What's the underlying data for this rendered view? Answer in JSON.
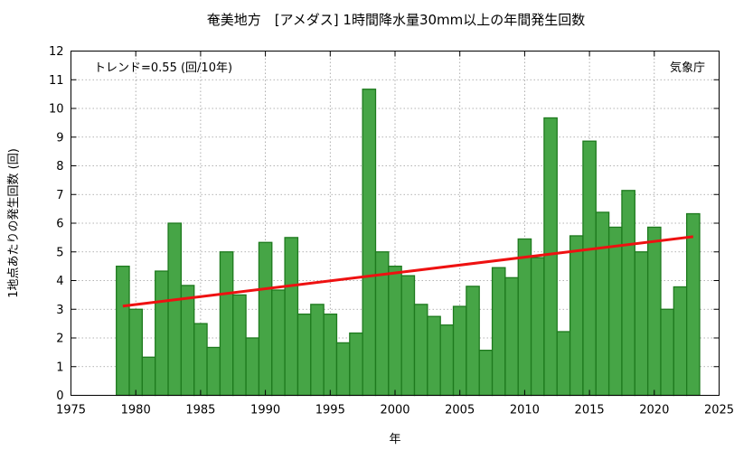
{
  "chart_data": {
    "type": "bar",
    "title": "奄美地方　[アメダス] 1時間降水量30mm以上の年間発生回数",
    "xlabel": "年",
    "ylabel": "1地点あたりの発生回数 (回)",
    "trend_label": "トレンド=0.55 (回/10年)",
    "source": "気象庁",
    "xlim": [
      1975,
      2025
    ],
    "ylim": [
      0,
      12
    ],
    "x_ticks": [
      1975,
      1980,
      1985,
      1990,
      1995,
      2000,
      2005,
      2010,
      2015,
      2020,
      2025
    ],
    "y_ticks": [
      0,
      1,
      2,
      3,
      4,
      5,
      6,
      7,
      8,
      9,
      10,
      11,
      12
    ],
    "grid": true,
    "years": [
      1979,
      1980,
      1981,
      1982,
      1983,
      1984,
      1985,
      1986,
      1987,
      1988,
      1989,
      1990,
      1991,
      1992,
      1993,
      1994,
      1995,
      1996,
      1997,
      1998,
      1999,
      2000,
      2001,
      2002,
      2003,
      2004,
      2005,
      2006,
      2007,
      2008,
      2009,
      2010,
      2011,
      2012,
      2013,
      2014,
      2015,
      2016,
      2017,
      2018,
      2019,
      2020,
      2021,
      2022,
      2023
    ],
    "values": [
      4.5,
      3.0,
      1.33,
      4.33,
      6.0,
      3.83,
      2.5,
      1.67,
      5.0,
      3.5,
      2.0,
      5.33,
      3.67,
      5.5,
      2.83,
      3.17,
      2.83,
      1.83,
      2.17,
      10.67,
      5.0,
      4.5,
      4.17,
      3.17,
      2.75,
      2.45,
      3.1,
      3.8,
      1.57,
      4.45,
      4.1,
      5.45,
      4.8,
      9.67,
      2.22,
      5.56,
      8.86,
      6.38,
      5.86,
      7.14,
      5.0,
      5.86,
      3.0,
      3.78,
      6.33
    ],
    "trend_line": {
      "x": [
        1979,
        2023
      ],
      "y": [
        3.11,
        5.53
      ]
    }
  }
}
